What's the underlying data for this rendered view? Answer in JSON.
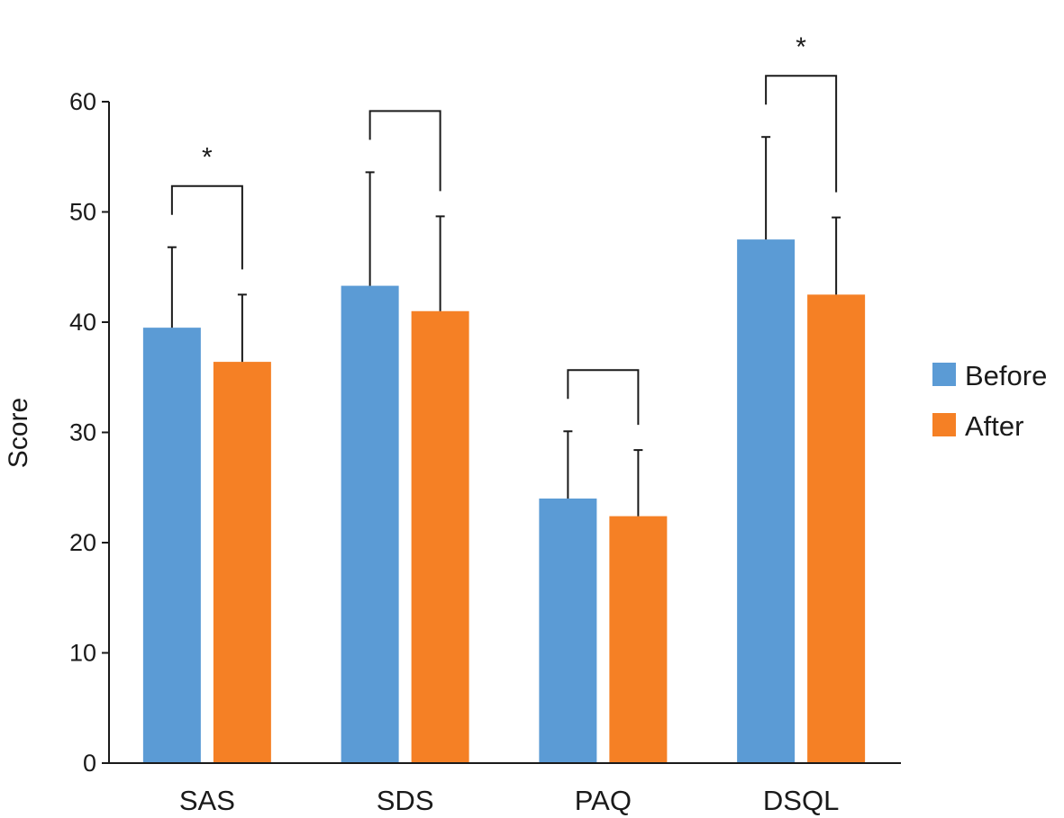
{
  "chart_data": {
    "type": "bar",
    "title": "",
    "xlabel": "",
    "ylabel": "Score",
    "ylim": [
      0,
      60
    ],
    "yticks": [
      0,
      10,
      20,
      30,
      40,
      50,
      60
    ],
    "categories": [
      "SAS",
      "SDS",
      "PAQ",
      "DSQL"
    ],
    "series": [
      {
        "name": "Before",
        "color": "#5B9BD5",
        "values": [
          39.5,
          43.3,
          24.0,
          47.5
        ],
        "errors": [
          7.3,
          10.3,
          6.1,
          9.3
        ]
      },
      {
        "name": "After",
        "color": "#F58025",
        "values": [
          36.4,
          41.0,
          22.4,
          42.5
        ],
        "errors": [
          6.1,
          8.6,
          6.0,
          7.0
        ]
      }
    ],
    "significance": [
      {
        "category": "SAS",
        "label": "*"
      },
      {
        "category": "SDS",
        "label": ""
      },
      {
        "category": "PAQ",
        "label": ""
      },
      {
        "category": "DSQL",
        "label": "*"
      }
    ],
    "legend_position": "right"
  }
}
